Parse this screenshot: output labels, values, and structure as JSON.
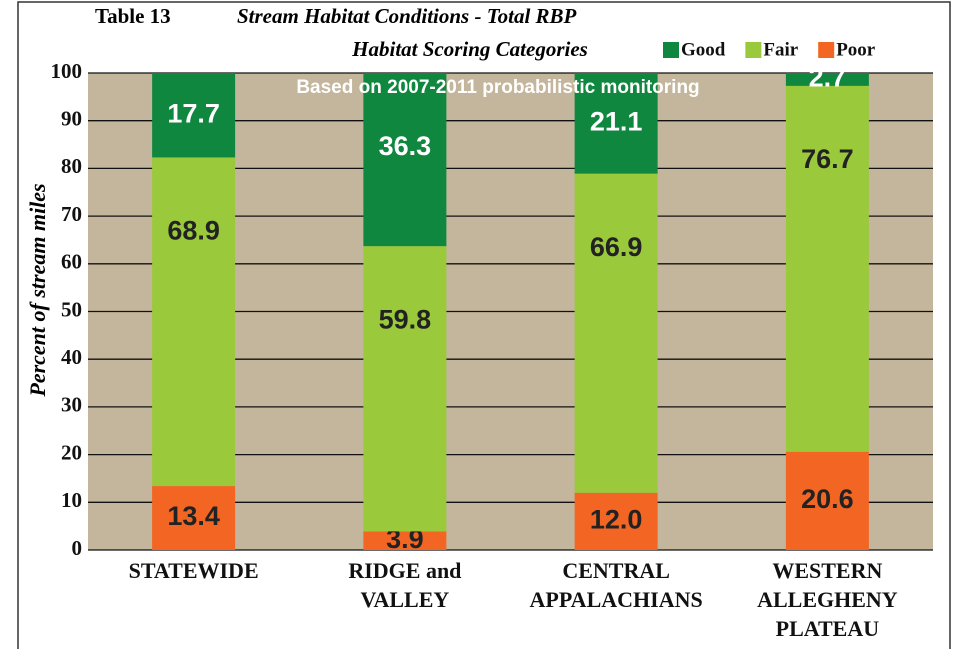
{
  "chart_data": {
    "type": "stacked_bar",
    "table_number": "Table 13",
    "title_lines": [
      "Stream Habitat Conditions - Total RBP",
      "Habitat Scoring Categories"
    ],
    "subtitle": "Based on 2007-2011 probabilistic monitoring",
    "y_label": "Percent of stream miles",
    "categories": [
      "STATEWIDE",
      "RIDGE and\nVALLEY",
      "CENTRAL\nAPPALACHIANS",
      "WESTERN\nALLEGHENY\nPLATEAU"
    ],
    "series": [
      {
        "name": "Poor",
        "color": "#f26522",
        "values": [
          13.4,
          3.9,
          12.0,
          20.6
        ],
        "value_labels": [
          "13.4",
          "3.9",
          "12.0",
          "20.6"
        ]
      },
      {
        "name": "Fair",
        "color": "#9bc93c",
        "values": [
          68.9,
          59.8,
          66.9,
          76.7
        ],
        "value_labels": [
          "68.9",
          "59.8",
          "66.9",
          "76.7"
        ]
      },
      {
        "name": "Good",
        "color": "#10873f",
        "values": [
          17.7,
          36.3,
          21.1,
          2.7
        ],
        "value_labels": [
          "17.7",
          "36.3",
          "21.1",
          "2.7"
        ]
      }
    ],
    "legend_order": [
      2,
      1,
      0
    ],
    "ylim": [
      0,
      100
    ],
    "yticks": [
      0,
      10,
      20,
      30,
      40,
      50,
      60,
      70,
      80,
      90,
      100
    ],
    "grid": true,
    "background": "#c4b69c"
  }
}
